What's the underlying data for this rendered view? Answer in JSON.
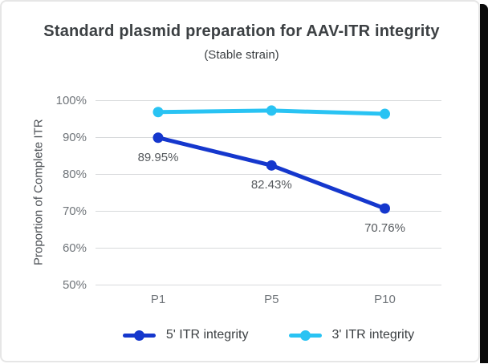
{
  "chart_data": {
    "type": "line",
    "title": "Standard plasmid preparation for AAV-ITR integrity",
    "subtitle": "(Stable strain)",
    "xlabel": "",
    "ylabel": "Proportion of Complete ITR",
    "categories": [
      "P1",
      "P5",
      "P10"
    ],
    "y_ticks": [
      100,
      90,
      80,
      70,
      60,
      50
    ],
    "y_tick_labels": [
      "100%",
      "90%",
      "80%",
      "70%",
      "60%",
      "50%"
    ],
    "ylim": [
      50,
      100
    ],
    "grid": true,
    "legend_position": "bottom",
    "series": [
      {
        "name": "5' ITR integrity",
        "color": "#1537cd",
        "values": [
          89.95,
          82.43,
          70.76
        ],
        "data_labels": [
          "89.95%",
          "82.43%",
          "70.76%"
        ]
      },
      {
        "name": "3' ITR integrity",
        "color": "#29c3f3",
        "values": [
          96.9,
          97.3,
          96.4
        ],
        "data_labels": []
      }
    ]
  },
  "colors": {
    "grid": "#d8dadc",
    "tick_text": "#70757a",
    "title_text": "#3c4043",
    "data_label_text": "#565a5e"
  }
}
